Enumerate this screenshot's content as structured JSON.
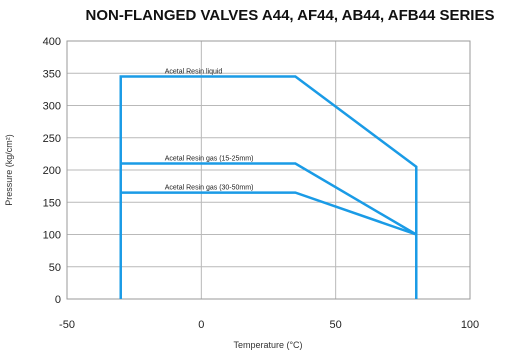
{
  "chart_data": {
    "type": "line",
    "title": "NON-FLANGED VALVES A44, AF44, AB44, AFB44 SERIES",
    "xlabel": "Temperature (°C)",
    "ylabel": "Pressure (kg/cm²)",
    "xlim": [
      -50,
      100
    ],
    "ylim": [
      0,
      400
    ],
    "xticks": [
      -50,
      0,
      50,
      100
    ],
    "yticks": [
      0,
      50,
      100,
      150,
      200,
      250,
      300,
      350,
      400
    ],
    "grid": true,
    "line_color": "#1a9be6",
    "series": [
      {
        "name": "Acetal Resin liquid",
        "x": [
          -30,
          -30,
          35,
          80,
          80
        ],
        "y": [
          0,
          345,
          345,
          205,
          0
        ]
      },
      {
        "name": "Acetal Resin gas (15-25mm)",
        "x": [
          -30,
          35,
          80
        ],
        "y": [
          210,
          210,
          100
        ]
      },
      {
        "name": "Acetal Resin gas (30-50mm)",
        "x": [
          -30,
          35,
          80
        ],
        "y": [
          165,
          165,
          100
        ]
      }
    ]
  }
}
